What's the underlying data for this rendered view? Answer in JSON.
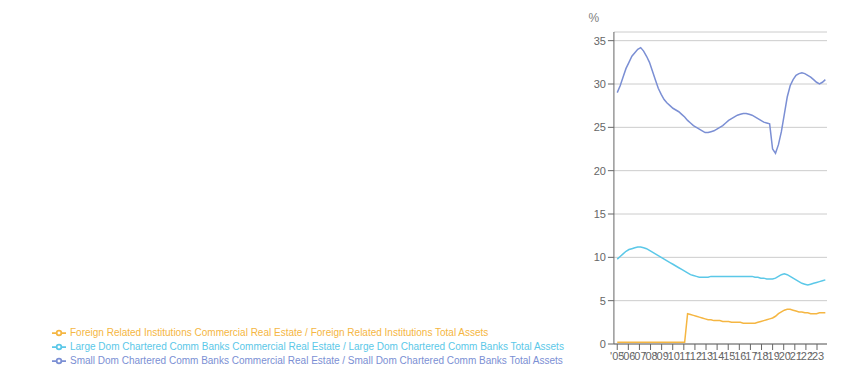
{
  "chart_data": {
    "type": "line",
    "ylabel": "%",
    "x": [
      2005,
      2005.264085,
      2005.528169,
      2005.792254,
      2006.056338,
      2006.320423,
      2006.584507,
      2006.848592,
      2007.112676,
      2007.376761,
      2007.640845,
      2007.90493,
      2008.169014,
      2008.433099,
      2008.697183,
      2008.961268,
      2009.225352,
      2009.489437,
      2009.753521,
      2010.017606,
      2010.28169,
      2010.545775,
      2010.809859,
      2011.073944,
      2011.338028,
      2011.602113,
      2011.866197,
      2012.130282,
      2012.394366,
      2012.658451,
      2012.922535,
      2013.18662,
      2013.450704,
      2013.714789,
      2013.978873,
      2014.242958,
      2014.507042,
      2014.771127,
      2015.035211,
      2015.299296,
      2015.56338,
      2015.827465,
      2016.091549,
      2016.355634,
      2016.619718,
      2016.883803,
      2017.147887,
      2017.411972,
      2017.676056,
      2017.940141,
      2018.204225,
      2018.46831,
      2018.732394,
      2018.996479,
      2019.260563,
      2019.524648,
      2019.788732,
      2020.052817,
      2020.316901,
      2020.580986,
      2020.84507,
      2021.109155,
      2021.373239,
      2021.637324,
      2021.901408,
      2022.165493,
      2022.429577,
      2022.693662,
      2022.957746,
      2023.221831,
      2023.485915,
      2023.75
    ],
    "series": [
      {
        "name": "Small Dom Chartered Comm Banks Commercial Real Estate / Small Dom Chartered Comm Banks Total Assets",
        "color": "#7b8fd4",
        "values": [
          29.0,
          29.8,
          30.8,
          31.8,
          32.5,
          33.2,
          33.6,
          34.0,
          34.2,
          33.8,
          33.2,
          32.5,
          31.5,
          30.5,
          29.5,
          28.8,
          28.2,
          27.8,
          27.5,
          27.2,
          27.0,
          26.8,
          26.5,
          26.2,
          25.8,
          25.5,
          25.2,
          25.0,
          24.8,
          24.6,
          24.4,
          24.4,
          24.5,
          24.6,
          24.8,
          25.0,
          25.2,
          25.5,
          25.8,
          26.0,
          26.2,
          26.4,
          26.5,
          26.6,
          26.6,
          26.5,
          26.4,
          26.2,
          26.0,
          25.8,
          25.6,
          25.5,
          25.4,
          22.5,
          22.0,
          23.0,
          24.5,
          26.5,
          28.5,
          29.8,
          30.5,
          31.0,
          31.2,
          31.3,
          31.2,
          31.0,
          30.8,
          30.5,
          30.2,
          30.0,
          30.2,
          30.5
        ]
      },
      {
        "name": "Large Dom Chartered Comm Banks Commercial Real Estate / Large Dom Chartered Comm Banks Total Assets",
        "color": "#5bc8e8",
        "values": [
          9.8,
          10.1,
          10.4,
          10.7,
          10.9,
          11.0,
          11.1,
          11.2,
          11.2,
          11.1,
          11.0,
          10.8,
          10.6,
          10.4,
          10.2,
          10.0,
          9.8,
          9.6,
          9.4,
          9.2,
          9.0,
          8.8,
          8.6,
          8.4,
          8.2,
          8.0,
          7.9,
          7.8,
          7.7,
          7.7,
          7.7,
          7.7,
          7.8,
          7.8,
          7.8,
          7.8,
          7.8,
          7.8,
          7.8,
          7.8,
          7.8,
          7.8,
          7.8,
          7.8,
          7.8,
          7.8,
          7.8,
          7.7,
          7.7,
          7.6,
          7.6,
          7.5,
          7.5,
          7.5,
          7.6,
          7.8,
          8.0,
          8.1,
          8.0,
          7.8,
          7.6,
          7.4,
          7.2,
          7.0,
          6.9,
          6.8,
          6.9,
          7.0,
          7.1,
          7.2,
          7.3,
          7.4
        ]
      },
      {
        "name": "Foreign Related Institutions Commercial Real Estate / Foreign Related Institutions Total Assets",
        "color": "#f5b642",
        "values": [
          0.2,
          0.2,
          0.2,
          0.2,
          0.2,
          0.2,
          0.2,
          0.2,
          0.2,
          0.2,
          0.2,
          0.2,
          0.2,
          0.2,
          0.2,
          0.2,
          0.2,
          0.2,
          0.2,
          0.2,
          0.2,
          0.2,
          0.2,
          0.2,
          3.5,
          3.4,
          3.3,
          3.2,
          3.1,
          3.0,
          2.9,
          2.8,
          2.8,
          2.7,
          2.7,
          2.7,
          2.6,
          2.6,
          2.6,
          2.5,
          2.5,
          2.5,
          2.5,
          2.4,
          2.4,
          2.4,
          2.4,
          2.4,
          2.5,
          2.6,
          2.7,
          2.8,
          2.9,
          3.0,
          3.2,
          3.5,
          3.7,
          3.9,
          4.0,
          4.0,
          3.9,
          3.8,
          3.7,
          3.7,
          3.6,
          3.6,
          3.5,
          3.5,
          3.5,
          3.6,
          3.6,
          3.6
        ]
      }
    ],
    "xlim": [
      2004.7,
      2023.9
    ],
    "xticks": [
      {
        "value": 2005,
        "label": "'05"
      },
      {
        "value": 2006,
        "label": "'06"
      },
      {
        "value": 2007,
        "label": "'07"
      },
      {
        "value": 2008,
        "label": "'08"
      },
      {
        "value": 2009,
        "label": "'09"
      },
      {
        "value": 2010,
        "label": "'10"
      },
      {
        "value": 2011,
        "label": "'11"
      },
      {
        "value": 2012,
        "label": "'12"
      },
      {
        "value": 2013,
        "label": "'13"
      },
      {
        "value": 2014,
        "label": "'14"
      },
      {
        "value": 2015,
        "label": "'15"
      },
      {
        "value": 2016,
        "label": "'16"
      },
      {
        "value": 2017,
        "label": "'17"
      },
      {
        "value": 2018,
        "label": "'18"
      },
      {
        "value": 2019,
        "label": "'19"
      },
      {
        "value": 2020,
        "label": "'20"
      },
      {
        "value": 2021,
        "label": "'21"
      },
      {
        "value": 2022,
        "label": "'22"
      },
      {
        "value": 2023,
        "label": "'23"
      }
    ],
    "ylim": [
      0,
      36
    ],
    "yticks": [
      0,
      5,
      10,
      15,
      20,
      25,
      30,
      35
    ],
    "grid": true,
    "legend": "bottom"
  }
}
